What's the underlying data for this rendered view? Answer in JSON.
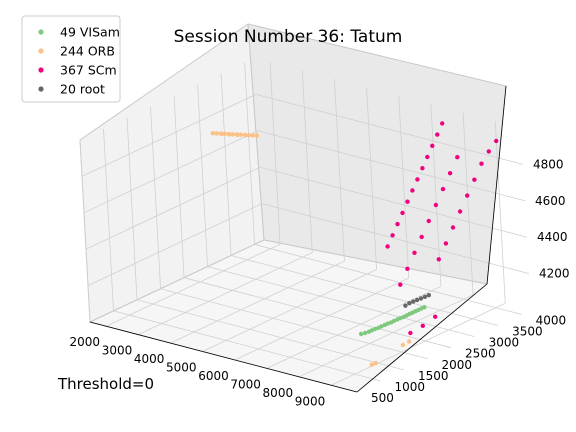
{
  "chart_data": {
    "type": "scatter",
    "projection": "3d",
    "title": "Session Number 36: Tatum",
    "footnote": "Threshold=0",
    "xlabel": "",
    "ylabel": "",
    "zlabel": "",
    "xlim": [
      1500,
      9800
    ],
    "ylim": [
      500,
      4200
    ],
    "zlim": [
      4000,
      5000
    ],
    "x_ticks": [
      "2000",
      "3000",
      "4000",
      "5000",
      "6000",
      "7000",
      "8000",
      "9000"
    ],
    "y_ticks": [
      "500",
      "1000",
      "1500",
      "2000",
      "2500",
      "3000",
      "3500",
      "4000"
    ],
    "z_ticks": [
      "4200",
      "4400",
      "4600",
      "4800"
    ],
    "grid": true,
    "legend_position": "top-left",
    "series": [
      {
        "name": "49 VISam",
        "color": "#7fc97f",
        "points": [
          {
            "x": 7900,
            "y": 1900,
            "z": 4060
          },
          {
            "x": 7950,
            "y": 1950,
            "z": 4062
          },
          {
            "x": 8000,
            "y": 2000,
            "z": 4065
          },
          {
            "x": 8020,
            "y": 2050,
            "z": 4068
          },
          {
            "x": 8050,
            "y": 2100,
            "z": 4070
          },
          {
            "x": 8080,
            "y": 2150,
            "z": 4072
          },
          {
            "x": 8100,
            "y": 2200,
            "z": 4075
          },
          {
            "x": 8130,
            "y": 2250,
            "z": 4078
          },
          {
            "x": 8150,
            "y": 2300,
            "z": 4080
          },
          {
            "x": 8180,
            "y": 2350,
            "z": 4082
          },
          {
            "x": 8200,
            "y": 2400,
            "z": 4085
          },
          {
            "x": 8230,
            "y": 2450,
            "z": 4088
          },
          {
            "x": 8250,
            "y": 2500,
            "z": 4090
          },
          {
            "x": 8280,
            "y": 2550,
            "z": 4092
          },
          {
            "x": 8300,
            "y": 2600,
            "z": 4095
          },
          {
            "x": 8320,
            "y": 2650,
            "z": 4098
          },
          {
            "x": 8340,
            "y": 2700,
            "z": 4100
          },
          {
            "x": 8360,
            "y": 2750,
            "z": 4103
          },
          {
            "x": 8380,
            "y": 2800,
            "z": 4105
          },
          {
            "x": 8400,
            "y": 2850,
            "z": 4108
          },
          {
            "x": 8420,
            "y": 2900,
            "z": 4110
          }
        ]
      },
      {
        "name": "244 ORB",
        "color": "#fdc086",
        "points": [
          {
            "x": 2200,
            "y": 2800,
            "z": 4790
          },
          {
            "x": 2250,
            "y": 2850,
            "z": 4785
          },
          {
            "x": 2300,
            "y": 2900,
            "z": 4780
          },
          {
            "x": 2350,
            "y": 2950,
            "z": 4775
          },
          {
            "x": 2400,
            "y": 3000,
            "z": 4770
          },
          {
            "x": 2450,
            "y": 3050,
            "z": 4765
          },
          {
            "x": 2500,
            "y": 3100,
            "z": 4760
          },
          {
            "x": 2550,
            "y": 3150,
            "z": 4755
          },
          {
            "x": 2600,
            "y": 3200,
            "z": 4750
          },
          {
            "x": 2650,
            "y": 3250,
            "z": 4745
          },
          {
            "x": 2700,
            "y": 3300,
            "z": 4740
          },
          {
            "x": 2750,
            "y": 3350,
            "z": 4735
          },
          {
            "x": 2250,
            "y": 2950,
            "z": 4770
          },
          {
            "x": 2350,
            "y": 3050,
            "z": 4760
          },
          {
            "x": 2450,
            "y": 3150,
            "z": 4750
          },
          {
            "x": 2550,
            "y": 3250,
            "z": 4740
          },
          {
            "x": 9100,
            "y": 1300,
            "z": 4020
          },
          {
            "x": 9150,
            "y": 1350,
            "z": 4025
          },
          {
            "x": 9200,
            "y": 1900,
            "z": 4060
          },
          {
            "x": 9250,
            "y": 2000,
            "z": 4070
          }
        ]
      },
      {
        "name": "367 SCm",
        "color": "#f0027f",
        "points": [
          {
            "x": 6300,
            "y": 3600,
            "z": 4260
          },
          {
            "x": 6400,
            "y": 3650,
            "z": 4320
          },
          {
            "x": 6500,
            "y": 3700,
            "z": 4380
          },
          {
            "x": 6600,
            "y": 3750,
            "z": 4440
          },
          {
            "x": 6700,
            "y": 3800,
            "z": 4500
          },
          {
            "x": 6800,
            "y": 3850,
            "z": 4560
          },
          {
            "x": 6900,
            "y": 3900,
            "z": 4620
          },
          {
            "x": 7000,
            "y": 3950,
            "z": 4680
          },
          {
            "x": 7100,
            "y": 4000,
            "z": 4740
          },
          {
            "x": 7200,
            "y": 4050,
            "z": 4800
          },
          {
            "x": 7300,
            "y": 4100,
            "z": 4860
          },
          {
            "x": 7400,
            "y": 4150,
            "z": 4920
          },
          {
            "x": 8500,
            "y": 3200,
            "z": 4340
          },
          {
            "x": 8600,
            "y": 3300,
            "z": 4420
          },
          {
            "x": 8700,
            "y": 3400,
            "z": 4500
          },
          {
            "x": 8800,
            "y": 3500,
            "z": 4580
          },
          {
            "x": 8900,
            "y": 3600,
            "z": 4660
          },
          {
            "x": 9000,
            "y": 3700,
            "z": 4740
          },
          {
            "x": 9100,
            "y": 3800,
            "z": 4820
          },
          {
            "x": 9200,
            "y": 3900,
            "z": 4880
          },
          {
            "x": 9300,
            "y": 4000,
            "z": 4930
          },
          {
            "x": 7700,
            "y": 2900,
            "z": 4200
          },
          {
            "x": 7800,
            "y": 3000,
            "z": 4280
          },
          {
            "x": 7900,
            "y": 3100,
            "z": 4360
          },
          {
            "x": 8000,
            "y": 3200,
            "z": 4440
          },
          {
            "x": 8100,
            "y": 3300,
            "z": 4520
          },
          {
            "x": 8200,
            "y": 3400,
            "z": 4600
          },
          {
            "x": 8300,
            "y": 3500,
            "z": 4680
          },
          {
            "x": 8400,
            "y": 3600,
            "z": 4760
          },
          {
            "x": 8500,
            "y": 3700,
            "z": 4840
          },
          {
            "x": 9000,
            "y": 2200,
            "z": 4080
          },
          {
            "x": 9100,
            "y": 2400,
            "z": 4100
          },
          {
            "x": 9200,
            "y": 2600,
            "z": 4130
          }
        ]
      },
      {
        "name": "20 root",
        "color": "#666666",
        "points": [
          {
            "x": 7900,
            "y": 2850,
            "z": 4100
          },
          {
            "x": 7950,
            "y": 2900,
            "z": 4110
          },
          {
            "x": 8000,
            "y": 2950,
            "z": 4115
          },
          {
            "x": 8050,
            "y": 3000,
            "z": 4120
          },
          {
            "x": 8100,
            "y": 3050,
            "z": 4125
          },
          {
            "x": 8150,
            "y": 3100,
            "z": 4130
          },
          {
            "x": 8200,
            "y": 3150,
            "z": 4135
          }
        ]
      }
    ]
  }
}
